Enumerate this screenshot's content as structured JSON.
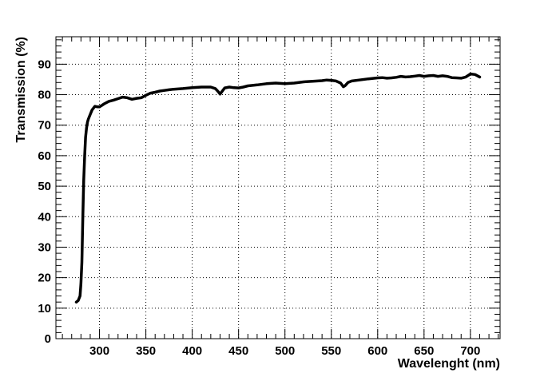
{
  "chart_data": {
    "type": "line",
    "xlabel": "Wavelenght (nm)",
    "ylabel": "Transmission (%)",
    "xlim": [
      253,
      732
    ],
    "ylim": [
      0,
      99
    ],
    "xticks": [
      300,
      350,
      400,
      450,
      500,
      550,
      600,
      650,
      700
    ],
    "yticks": [
      0,
      10,
      20,
      30,
      40,
      50,
      60,
      70,
      80,
      90
    ],
    "grid": true,
    "series": [
      {
        "color": "#000000",
        "x": [
          275,
          277,
          279,
          280,
          281,
          282,
          283,
          284,
          285,
          286,
          287,
          288,
          290,
          292,
          295,
          298,
          300,
          305,
          310,
          315,
          320,
          325,
          330,
          335,
          340,
          345,
          350,
          355,
          360,
          365,
          370,
          375,
          380,
          390,
          400,
          410,
          420,
          425,
          428,
          430,
          432,
          435,
          440,
          445,
          450,
          455,
          460,
          470,
          480,
          490,
          500,
          510,
          520,
          530,
          540,
          545,
          550,
          555,
          560,
          563,
          565,
          568,
          572,
          580,
          590,
          600,
          605,
          610,
          615,
          620,
          625,
          630,
          635,
          640,
          645,
          650,
          655,
          660,
          665,
          670,
          675,
          680,
          685,
          690,
          695,
          700,
          705,
          710
        ],
        "y": [
          12,
          12.5,
          14,
          18,
          25,
          40,
          52,
          60,
          66,
          69,
          71,
          72,
          73.5,
          75,
          76.2,
          76.0,
          76.0,
          77.0,
          77.8,
          78.2,
          78.7,
          79.2,
          79.0,
          78.5,
          78.8,
          79.0,
          79.8,
          80.5,
          80.8,
          81.2,
          81.4,
          81.6,
          81.8,
          82.0,
          82.3,
          82.5,
          82.5,
          82.0,
          81.0,
          80.2,
          81.0,
          82.2,
          82.5,
          82.3,
          82.2,
          82.5,
          82.9,
          83.2,
          83.6,
          83.8,
          83.6,
          83.8,
          84.2,
          84.4,
          84.6,
          84.8,
          84.7,
          84.5,
          83.8,
          82.6,
          83.0,
          84.0,
          84.5,
          84.8,
          85.2,
          85.5,
          85.6,
          85.4,
          85.5,
          85.7,
          86.0,
          85.8,
          85.9,
          86.1,
          86.3,
          86.0,
          86.2,
          86.3,
          86.0,
          86.2,
          86.0,
          85.6,
          85.5,
          85.4,
          85.8,
          86.8,
          86.6,
          85.8
        ]
      }
    ]
  }
}
